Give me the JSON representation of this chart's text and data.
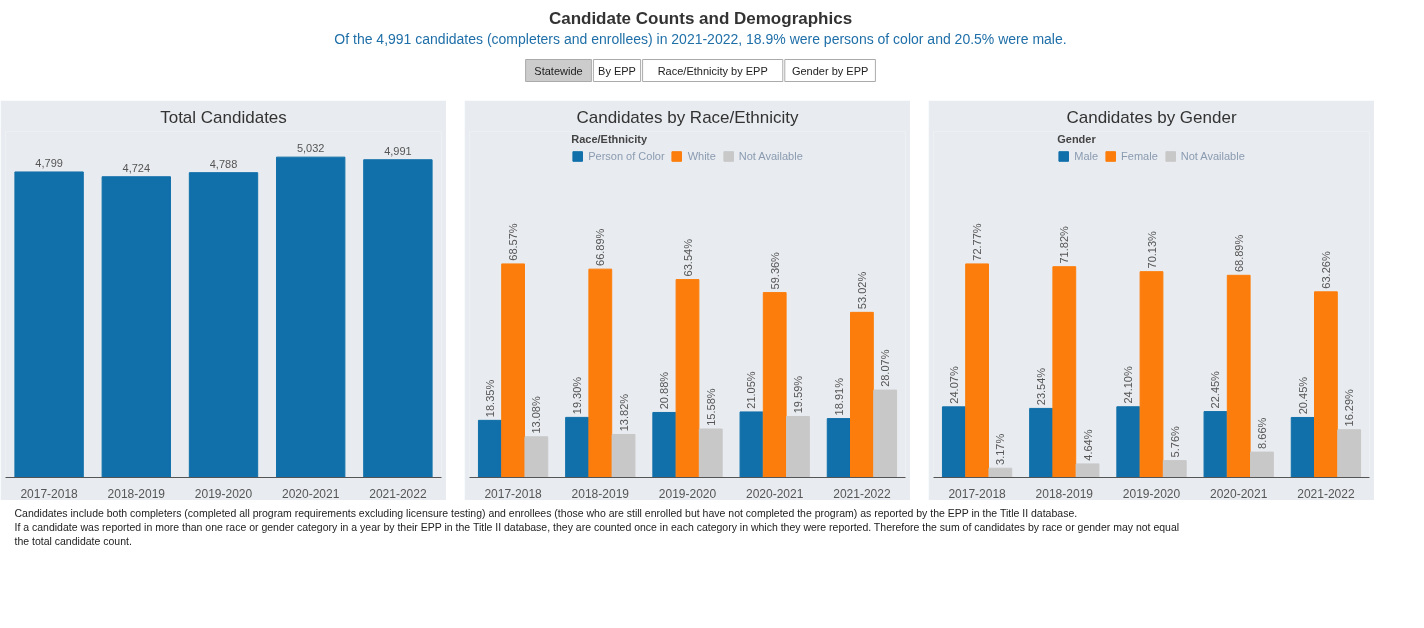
{
  "chart_data": [
    {
      "type": "other",
      "title": "Candidate Counts and Demographics",
      "subtitle": "Of the 4,991 candidates (completers and enrollees) in 2021-2022, 18.9% were persons of color and 20.5% were male.",
      "annotations": [
        "Statewide",
        "By EPP",
        "Race/Ethnicity by EPP",
        "Gender by EPP"
      ]
    },
    {
      "type": "bar",
      "title": "Total Candidates",
      "categories": [
        "2017-2018",
        "2018-2019",
        "2019-2020",
        "2020-2021",
        "2021-2022"
      ],
      "tick_labels": "x",
      "grid": false,
      "legend": false,
      "series": [
        {
          "color": "#1170aa",
          "values": [
            4799,
            4724,
            4788,
            5032,
            4991
          ],
          "value_labels": [
            "4,799",
            "4,724",
            "4,788",
            "5,032",
            "4,991"
          ]
        }
      ]
    },
    {
      "type": "bar",
      "title": "Candidates by Race/Ethnicity",
      "legend_title": "Race/Ethnicity",
      "legend": "top",
      "tick_labels": "x",
      "grid": false,
      "categories": [
        "2017-2018",
        "2018-2019",
        "2019-2020",
        "2020-2021",
        "2021-2022"
      ],
      "series": [
        {
          "name": "Person of Color",
          "color": "#1170aa",
          "values": [
            18.35,
            19.3,
            20.88,
            21.05,
            18.91
          ],
          "value_labels": [
            "18.35%",
            "19.30%",
            "20.88%",
            "21.05%",
            "18.91%"
          ]
        },
        {
          "name": "White",
          "color": "#fc7d0b",
          "values": [
            68.57,
            66.89,
            63.54,
            59.36,
            53.02
          ],
          "value_labels": [
            "68.57%",
            "66.89%",
            "63.54%",
            "59.36%",
            "53.02%"
          ]
        },
        {
          "name": "Not Available",
          "color": "#c8c8c8",
          "values": [
            13.08,
            13.82,
            15.58,
            19.59,
            28.07
          ],
          "value_labels": [
            "13.08%",
            "13.82%",
            "15.58%",
            "19.59%",
            "28.07%"
          ]
        }
      ]
    },
    {
      "type": "bar",
      "title": "Candidates by Gender",
      "legend_title": "Gender",
      "legend": "top",
      "tick_labels": "x",
      "grid": false,
      "categories": [
        "2017-2018",
        "2018-2019",
        "2019-2020",
        "2020-2021",
        "2021-2022"
      ],
      "series": [
        {
          "name": "Male",
          "color": "#1170aa",
          "values": [
            24.07,
            23.54,
            24.1,
            22.45,
            20.45
          ],
          "value_labels": [
            "24.07%",
            "23.54%",
            "24.10%",
            "22.45%",
            "20.45%"
          ]
        },
        {
          "name": "Female",
          "color": "#fc7d0b",
          "values": [
            72.77,
            71.82,
            70.13,
            68.89,
            63.26
          ],
          "value_labels": [
            "72.77%",
            "71.82%",
            "70.13%",
            "68.89%",
            "63.26%"
          ]
        },
        {
          "name": "Not Available",
          "color": "#c8c8c8",
          "values": [
            3.17,
            4.64,
            5.76,
            8.66,
            16.29
          ],
          "value_labels": [
            "3.17%",
            "4.64%",
            "5.76%",
            "8.66%",
            "16.29%"
          ]
        }
      ]
    },
    {
      "type": "other",
      "annotations": [
        "Candidates include both completers (completed all program requirements excluding licensure testing) and enrollees (those who are still enrolled but have not completed the program) as reported by the EPP in the Title II database.",
        "If a candidate was reported in more than one race or gender category in a year by their EPP in the Title II database, they are counted once in each category in which they were reported. Therefore the sum of candidates by race or gender may not equal the total candidate count."
      ]
    }
  ]
}
